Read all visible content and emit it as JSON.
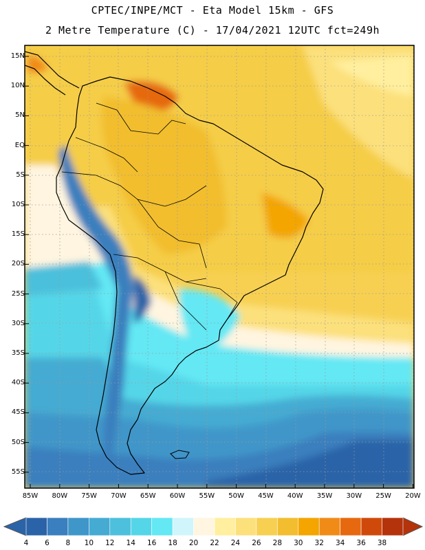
{
  "header": {
    "line1": "CPTEC/INPE/MCT -  Eta Model 15km - GFS",
    "line2": "2 Metre Temperature (C) - 17/04/2021 12UTC fct=249h"
  },
  "map": {
    "lat_labels": [
      "15N",
      "10N",
      "5N",
      "EQ",
      "5S",
      "10S",
      "15S",
      "20S",
      "25S",
      "30S",
      "35S",
      "40S",
      "45S",
      "50S",
      "55S"
    ],
    "lon_labels": [
      "85W",
      "80W",
      "75W",
      "70W",
      "65W",
      "60W",
      "55W",
      "50W",
      "45W",
      "40W",
      "35W",
      "30W",
      "25W",
      "20W"
    ],
    "field": "2 Metre Temperature (C)"
  },
  "colorbar": {
    "labels": [
      "4",
      "6",
      "8",
      "10",
      "12",
      "14",
      "16",
      "18",
      "20",
      "22",
      "24",
      "26",
      "28",
      "30",
      "32",
      "34",
      "36",
      "38"
    ],
    "colors": [
      "#2b63a8",
      "#3a7fbe",
      "#3f96c9",
      "#45abd2",
      "#4cc0dc",
      "#55d6e8",
      "#63e8f4",
      "#d0f5fa",
      "#fff5e0",
      "#ffef9e",
      "#fce07c",
      "#f7d052",
      "#f2be2f",
      "#f4a500",
      "#f08b18",
      "#e6690f",
      "#cf4a0a",
      "#b5330b"
    ],
    "low_color": "#2b63a8",
    "high_color": "#b5330b"
  }
}
